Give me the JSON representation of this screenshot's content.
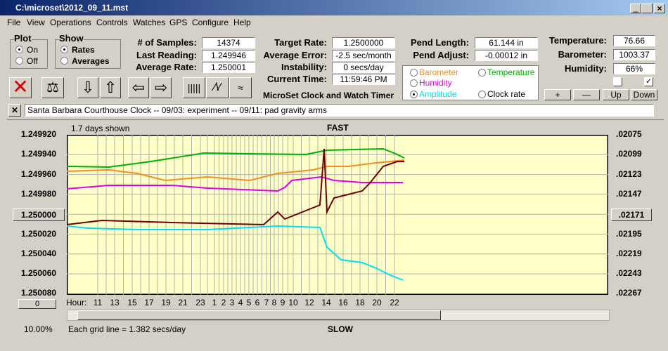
{
  "window": {
    "title": "C:\\microset\\2012_09_11.mst"
  },
  "menu": [
    "File",
    "View",
    "Operations",
    "Controls",
    "Watches",
    "GPS",
    "Configure",
    "Help"
  ],
  "plot": {
    "label": "Plot",
    "options": [
      "On",
      "Off"
    ]
  },
  "show": {
    "label": "Show",
    "options": [
      "Rates",
      "Averages"
    ]
  },
  "fields": {
    "samples": {
      "label": "# of Samples:",
      "value": "14374"
    },
    "last_reading": {
      "label": "Last Reading:",
      "value": "1.249946"
    },
    "average_rate": {
      "label": "Average Rate:",
      "value": "1.250001"
    },
    "target_rate": {
      "label": "Target Rate:",
      "value": "1.2500000"
    },
    "average_error": {
      "label": "Average Error:",
      "value": "-2.5 sec/month"
    },
    "instability": {
      "label": "Instability:",
      "value": "0 secs/day"
    },
    "current_time": {
      "label": "Current Time:",
      "value": "11:59:46 PM"
    },
    "pend_length": {
      "label": "Pend Length:",
      "value": "61.144 in"
    },
    "pend_adjust": {
      "label": "Pend Adjust:",
      "value": "-0.00012 in"
    },
    "temperature": {
      "label": "Temperature:",
      "value": "76.66"
    },
    "barometer": {
      "label": "Barometer:",
      "value": "1003.37"
    },
    "humidity": {
      "label": "Humidity:",
      "value": "66%"
    }
  },
  "traces": [
    "Barometer",
    "Temperature",
    "Humidity",
    "Amplitude",
    "Clock rate"
  ],
  "app_name": "MicroSet Clock and Watch Timer",
  "buttons": [
    "+",
    "—",
    "Up",
    "Down"
  ],
  "notes": "Santa Barbara Courthouse Clock  -- 09/03: experiment  --  09/11: pad gravity arms",
  "chart": {
    "span": "1.7 days shown",
    "top": "FAST",
    "bottom": "SLOW",
    "left_labels": [
      "1.249920",
      "1.249940",
      "1.249960",
      "1.249980",
      "1.250000",
      "1.250020",
      "1.250040",
      "1.250060",
      "1.250080"
    ],
    "right_labels": [
      ".02075",
      ".02099",
      ".02123",
      ".02147",
      ".02171",
      ".02195",
      ".02219",
      ".02243",
      ".02267"
    ],
    "hour_label": "Hour:",
    "hours": [
      "11",
      "13",
      "15",
      "17",
      "19",
      "21",
      "23",
      "1",
      "2",
      "3",
      "4",
      "5",
      "6",
      "7",
      "8",
      "9",
      "10",
      "12",
      "14",
      "16",
      "18",
      "20",
      "22"
    ],
    "zoom": "0",
    "percent": "10.00%",
    "grid_note": "Each grid line = 1.382 secs/day"
  }
}
